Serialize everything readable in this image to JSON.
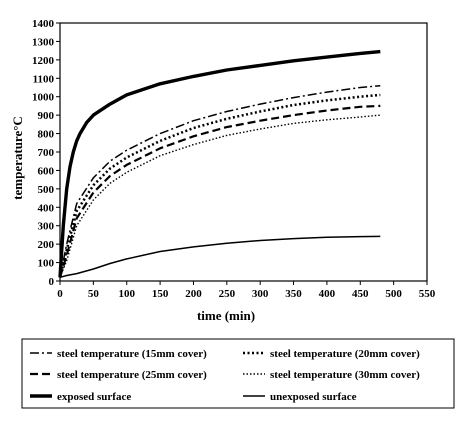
{
  "chart_data": {
    "type": "line",
    "xlabel": "time (min)",
    "ylabel": "temperature°C",
    "xlim": [
      0,
      550
    ],
    "ylim": [
      0,
      1400
    ],
    "x_ticks": [
      0,
      50,
      100,
      150,
      200,
      250,
      300,
      350,
      400,
      450,
      500,
      550
    ],
    "y_ticks": [
      0,
      100,
      200,
      300,
      400,
      500,
      600,
      700,
      800,
      900,
      1000,
      1100,
      1200,
      1300,
      1400
    ],
    "grid": false,
    "legend_position": "bottom",
    "series": [
      {
        "name": "steel temperature (15mm cover)",
        "style": "dash-dot",
        "x": [
          0,
          10,
          25,
          50,
          75,
          100,
          150,
          200,
          250,
          300,
          350,
          400,
          450,
          480
        ],
        "y": [
          20,
          200,
          420,
          560,
          650,
          710,
          800,
          870,
          920,
          960,
          995,
          1025,
          1050,
          1060
        ]
      },
      {
        "name": "steel temperature (20mm cover)",
        "style": "dotted-heavy",
        "x": [
          0,
          10,
          25,
          50,
          75,
          100,
          150,
          200,
          250,
          300,
          350,
          400,
          450,
          480
        ],
        "y": [
          20,
          170,
          380,
          520,
          610,
          670,
          760,
          830,
          880,
          920,
          955,
          980,
          1000,
          1010
        ]
      },
      {
        "name": "steel temperature (25mm cover)",
        "style": "dashed",
        "x": [
          0,
          10,
          25,
          50,
          75,
          100,
          150,
          200,
          250,
          300,
          350,
          400,
          450,
          480
        ],
        "y": [
          20,
          140,
          340,
          480,
          570,
          630,
          720,
          785,
          835,
          870,
          900,
          925,
          945,
          950
        ]
      },
      {
        "name": "steel temperature (30mm cover)",
        "style": "dotted",
        "x": [
          0,
          10,
          25,
          50,
          75,
          100,
          150,
          200,
          250,
          300,
          350,
          400,
          450,
          480
        ],
        "y": [
          20,
          110,
          300,
          440,
          530,
          590,
          680,
          740,
          790,
          825,
          855,
          875,
          890,
          900
        ]
      },
      {
        "name": "exposed surface",
        "style": "thick-solid",
        "x": [
          0,
          5,
          10,
          15,
          20,
          25,
          30,
          40,
          50,
          75,
          100,
          150,
          200,
          250,
          300,
          350,
          400,
          450,
          480
        ],
        "y": [
          20,
          300,
          500,
          620,
          700,
          760,
          800,
          860,
          900,
          960,
          1010,
          1070,
          1110,
          1145,
          1170,
          1195,
          1215,
          1235,
          1245
        ]
      },
      {
        "name": "unexposed surface",
        "style": "solid",
        "x": [
          0,
          10,
          25,
          50,
          75,
          100,
          150,
          200,
          250,
          300,
          350,
          400,
          450,
          480
        ],
        "y": [
          20,
          30,
          40,
          65,
          95,
          120,
          160,
          185,
          205,
          220,
          230,
          237,
          241,
          242
        ]
      }
    ]
  }
}
